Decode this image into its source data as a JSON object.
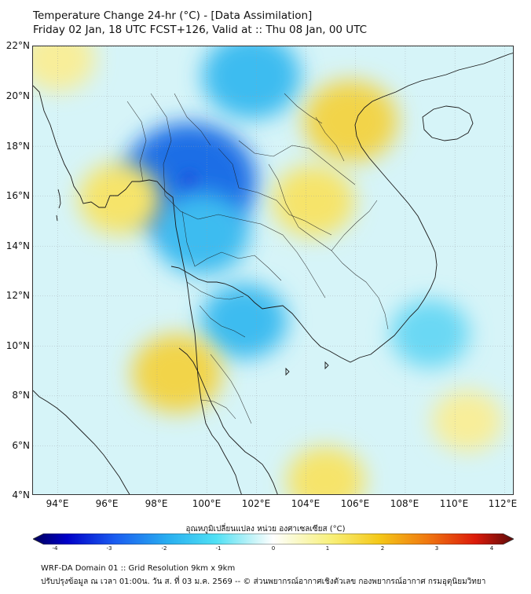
{
  "title": {
    "line1": "Temperature Change 24-hr (°C) - [Data Assimilation]",
    "line2": "Friday 02 Jan, 18 UTC FCST+126, Valid at :: Thu 08 Jan, 00 UTC"
  },
  "axes": {
    "latitude_labels": [
      "22°N",
      "20°N",
      "18°N",
      "16°N",
      "14°N",
      "12°N",
      "10°N",
      "8°N",
      "6°N",
      "4°N"
    ],
    "longitude_labels": [
      "94°E",
      "96°E",
      "98°E",
      "100°E",
      "102°E",
      "104°E",
      "106°E",
      "108°E",
      "110°E",
      "112°E"
    ],
    "lat_range": [
      4,
      22
    ],
    "lon_range": [
      93,
      112.4
    ]
  },
  "colorbar": {
    "title": "อุณหภูมิเปลี่ยนแปลง หน่วย องศาเซลเซียส (°C)",
    "ticks": [
      "-4",
      "-3",
      "-2",
      "-1",
      "0",
      "1",
      "2",
      "3",
      "4"
    ],
    "range": [
      -4,
      4
    ]
  },
  "field_features": [
    {
      "name": "cool-core-northern-thailand",
      "lon": 99.3,
      "lat": 16.6,
      "value": -2.2
    },
    {
      "name": "cool-laos-highlands",
      "lon": 101.8,
      "lat": 20.8,
      "value": -1.3
    },
    {
      "name": "cool-central-thailand",
      "lon": 99.8,
      "lat": 14.5,
      "value": -1.2
    },
    {
      "name": "cool-gulf-of-thailand",
      "lon": 101.5,
      "lat": 11.0,
      "value": -1.0
    },
    {
      "name": "cool-south-china-sea",
      "lon": 109.0,
      "lat": 10.5,
      "value": -0.8
    },
    {
      "name": "warm-gulf-of-tonkin",
      "lon": 105.8,
      "lat": 19.0,
      "value": 1.2
    },
    {
      "name": "warm-northeast-thailand",
      "lon": 104.3,
      "lat": 15.8,
      "value": 0.9
    },
    {
      "name": "warm-southern-thailand",
      "lon": 98.8,
      "lat": 8.9,
      "value": 1.1
    },
    {
      "name": "warm-andaman-sea",
      "lon": 96.5,
      "lat": 15.9,
      "value": 0.9
    },
    {
      "name": "warm-northwest-corner",
      "lon": 94.0,
      "lat": 21.5,
      "value": 0.7
    },
    {
      "name": "warm-south-sea",
      "lon": 104.8,
      "lat": 4.6,
      "value": 0.8
    },
    {
      "name": "warm-south-china-sea-east",
      "lon": 110.5,
      "lat": 7.0,
      "value": 0.6
    }
  ],
  "footer": {
    "line1": "WRF-DA Domain 01 :: Grid Resolution 9km x 9km",
    "line2": "ปรับปรุงข้อมูล ณ เวลา 01:00น. วัน ส. ที่ 03 ม.ค. 2569 -- © ส่วนพยากรณ์อากาศเชิงตัวเลข กองพยากรณ์อากาศ กรมอุตุนิยมวิทยา"
  },
  "colors": {
    "base_field": "#d6f4f8",
    "frame": "#333333",
    "coastline": "#1a1a1a"
  }
}
